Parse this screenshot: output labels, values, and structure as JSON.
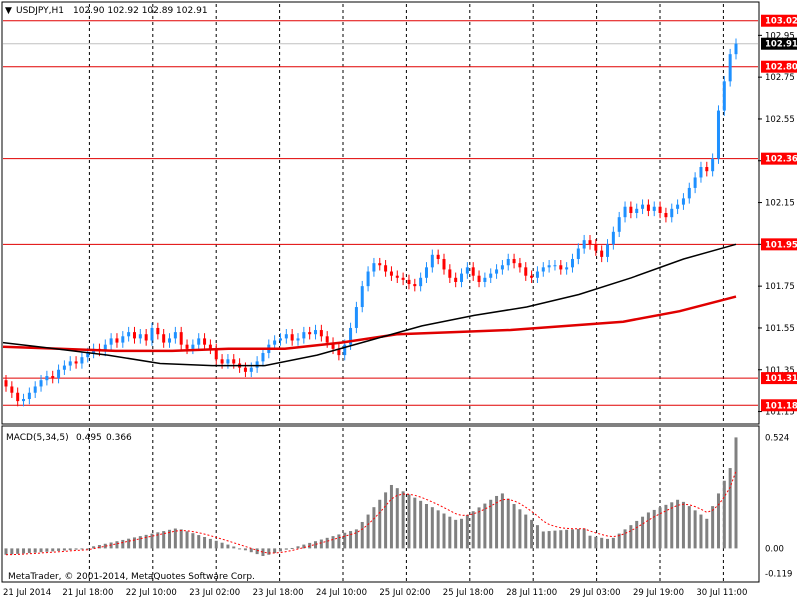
{
  "header": {
    "menu_glyph": "▼",
    "symbol": "USDJPY,H1",
    "ohlc": "102.90 102.92 102.89 102.91"
  },
  "indicator": {
    "name": "MACD(5,34,5)",
    "main": "0.495",
    "signal": "0.366"
  },
  "copyright": "MetaTrader, © 2001-2014, MetaQuotes Software Corp.",
  "colors": {
    "background": "#ffffff",
    "bull": "#1e90ff",
    "bear": "#ff0000",
    "level_line": "#e00000",
    "sma_fast": "#000000",
    "sma_slow": "#e00000",
    "macd_bar": "#808080",
    "macd_signal": "#ff0000",
    "current_price_tag": "#000000",
    "level_tag": "#ff0000"
  },
  "chart_data": {
    "type": "candlestick",
    "symbol": "USDJPY",
    "timeframe": "H1",
    "ylim": [
      101.1,
      103.1
    ],
    "y_ticks": [
      102.95,
      102.75,
      102.55,
      102.35,
      102.15,
      101.95,
      101.75,
      101.55,
      101.35,
      101.15
    ],
    "x_tick_labels": [
      "21 Jul 2014",
      "21 Jul 18:00",
      "22 Jul 10:00",
      "23 Jul 02:00",
      "23 Jul 18:00",
      "24 Jul 10:00",
      "25 Jul 02:00",
      "25 Jul 18:00",
      "28 Jul 11:00",
      "29 Jul 03:00",
      "29 Jul 19:00",
      "30 Jul 11:00"
    ],
    "current_price": 102.91,
    "horizontal_levels": [
      103.02,
      102.8,
      102.36,
      101.95,
      101.31,
      101.18
    ],
    "moving_average_black": [
      101.48,
      101.45,
      101.42,
      101.38,
      101.37,
      101.37,
      101.42,
      101.49,
      101.56,
      101.61,
      101.65,
      101.71,
      101.79,
      101.88,
      101.95
    ],
    "moving_average_red": [
      101.46,
      101.45,
      101.44,
      101.44,
      101.45,
      101.45,
      101.48,
      101.52,
      101.53,
      101.54,
      101.56,
      101.58,
      101.63,
      101.7
    ],
    "closes": [
      101.27,
      101.24,
      101.2,
      101.21,
      101.24,
      101.27,
      101.3,
      101.32,
      101.31,
      101.35,
      101.37,
      101.39,
      101.38,
      101.41,
      101.43,
      101.45,
      101.44,
      101.47,
      101.5,
      101.48,
      101.51,
      101.53,
      101.5,
      101.52,
      101.49,
      101.55,
      101.52,
      101.48,
      101.5,
      101.53,
      101.47,
      101.45,
      101.47,
      101.5,
      101.47,
      101.45,
      101.4,
      101.38,
      101.4,
      101.38,
      101.36,
      101.34,
      101.36,
      101.39,
      101.43,
      101.47,
      101.49,
      101.5,
      101.52,
      101.49,
      101.5,
      101.53,
      101.52,
      101.54,
      101.51,
      101.48,
      101.45,
      101.42,
      101.47,
      101.55,
      101.65,
      101.75,
      101.82,
      101.86,
      101.85,
      101.82,
      101.8,
      101.79,
      101.78,
      101.76,
      101.75,
      101.79,
      101.84,
      101.9,
      101.88,
      101.83,
      101.79,
      101.77,
      101.81,
      101.84,
      101.8,
      101.77,
      101.79,
      101.81,
      101.83,
      101.85,
      101.88,
      101.86,
      101.84,
      101.8,
      101.79,
      101.82,
      101.84,
      101.85,
      101.85,
      101.83,
      101.84,
      101.88,
      101.93,
      101.97,
      101.95,
      101.92,
      101.89,
      101.95,
      102.01,
      102.08,
      102.13,
      102.1,
      102.12,
      102.14,
      102.11,
      102.13,
      102.1,
      102.08,
      102.12,
      102.14,
      102.17,
      102.22,
      102.27,
      102.32,
      102.3,
      102.36,
      102.59,
      102.73,
      102.86,
      102.91
    ],
    "macd": {
      "name": "MACD(5,34,5)",
      "main_value": 0.495,
      "signal_value": 0.366,
      "y_ticks": [
        0.524,
        0.0,
        -0.119
      ],
      "ylim": [
        -0.14,
        0.56
      ]
    }
  }
}
